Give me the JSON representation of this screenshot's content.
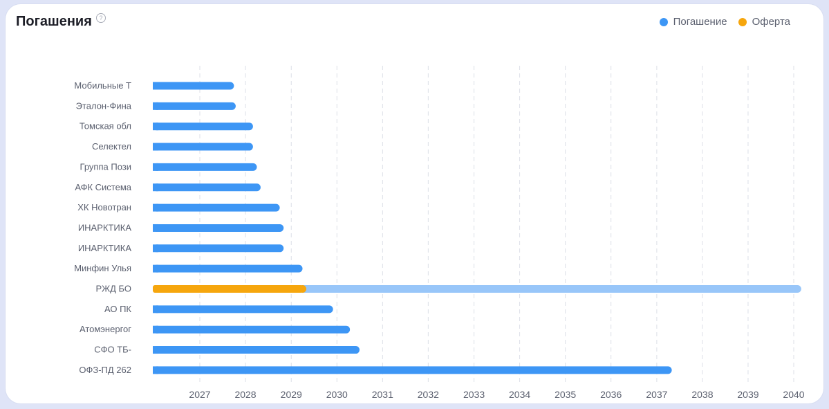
{
  "header": {
    "title": "Погашения",
    "help_glyph": "?"
  },
  "legend": [
    {
      "label": "Погашение",
      "color": "#3d96f5"
    },
    {
      "label": "Оферта",
      "color": "#f6a60d"
    }
  ],
  "colors": {
    "redemption": "#3d96f5",
    "offer": "#f6a60d",
    "after_offer": "#98c6f9",
    "grid": "#dcdfe7"
  },
  "chart_data": {
    "type": "bar",
    "orientation": "horizontal",
    "x_scale": "time",
    "xlim": [
      "2026-01-01",
      "2040-04-01"
    ],
    "x_ticks": [
      "2027",
      "2028",
      "2029",
      "2030",
      "2031",
      "2032",
      "2033",
      "2034",
      "2035",
      "2036",
      "2037",
      "2038",
      "2039",
      "2040"
    ],
    "grid": "vertical dashed",
    "legend_position": "top-right",
    "bars": [
      {
        "label": "Мобильные Т",
        "end": "2027-10-01"
      },
      {
        "label": "Эталон-Фина",
        "end": "2027-10-15"
      },
      {
        "label": "Томская обл",
        "end": "2028-03-01"
      },
      {
        "label": "Селектел",
        "end": "2028-03-01"
      },
      {
        "label": "Группа Пози",
        "end": "2028-04-01"
      },
      {
        "label": "АФК Система",
        "end": "2028-05-01"
      },
      {
        "label": "ХК Новотран",
        "end": "2028-10-01"
      },
      {
        "label": "ИНАРКТИКА",
        "end": "2028-11-01"
      },
      {
        "label": "ИНАРКТИКА",
        "end": "2028-11-01"
      },
      {
        "label": "Минфин Улья",
        "end": "2029-04-01"
      },
      {
        "label": "РЖД БО",
        "offer": "2029-04-01",
        "end": "2040-03-01"
      },
      {
        "label": "АО ПК",
        "end": "2029-12-01"
      },
      {
        "label": "Атомэнергог",
        "end": "2030-04-15"
      },
      {
        "label": "СФО ТБ-",
        "end": "2030-07-01"
      },
      {
        "label": "ОФЗ-ПД 262",
        "end": "2037-05-01"
      }
    ]
  }
}
